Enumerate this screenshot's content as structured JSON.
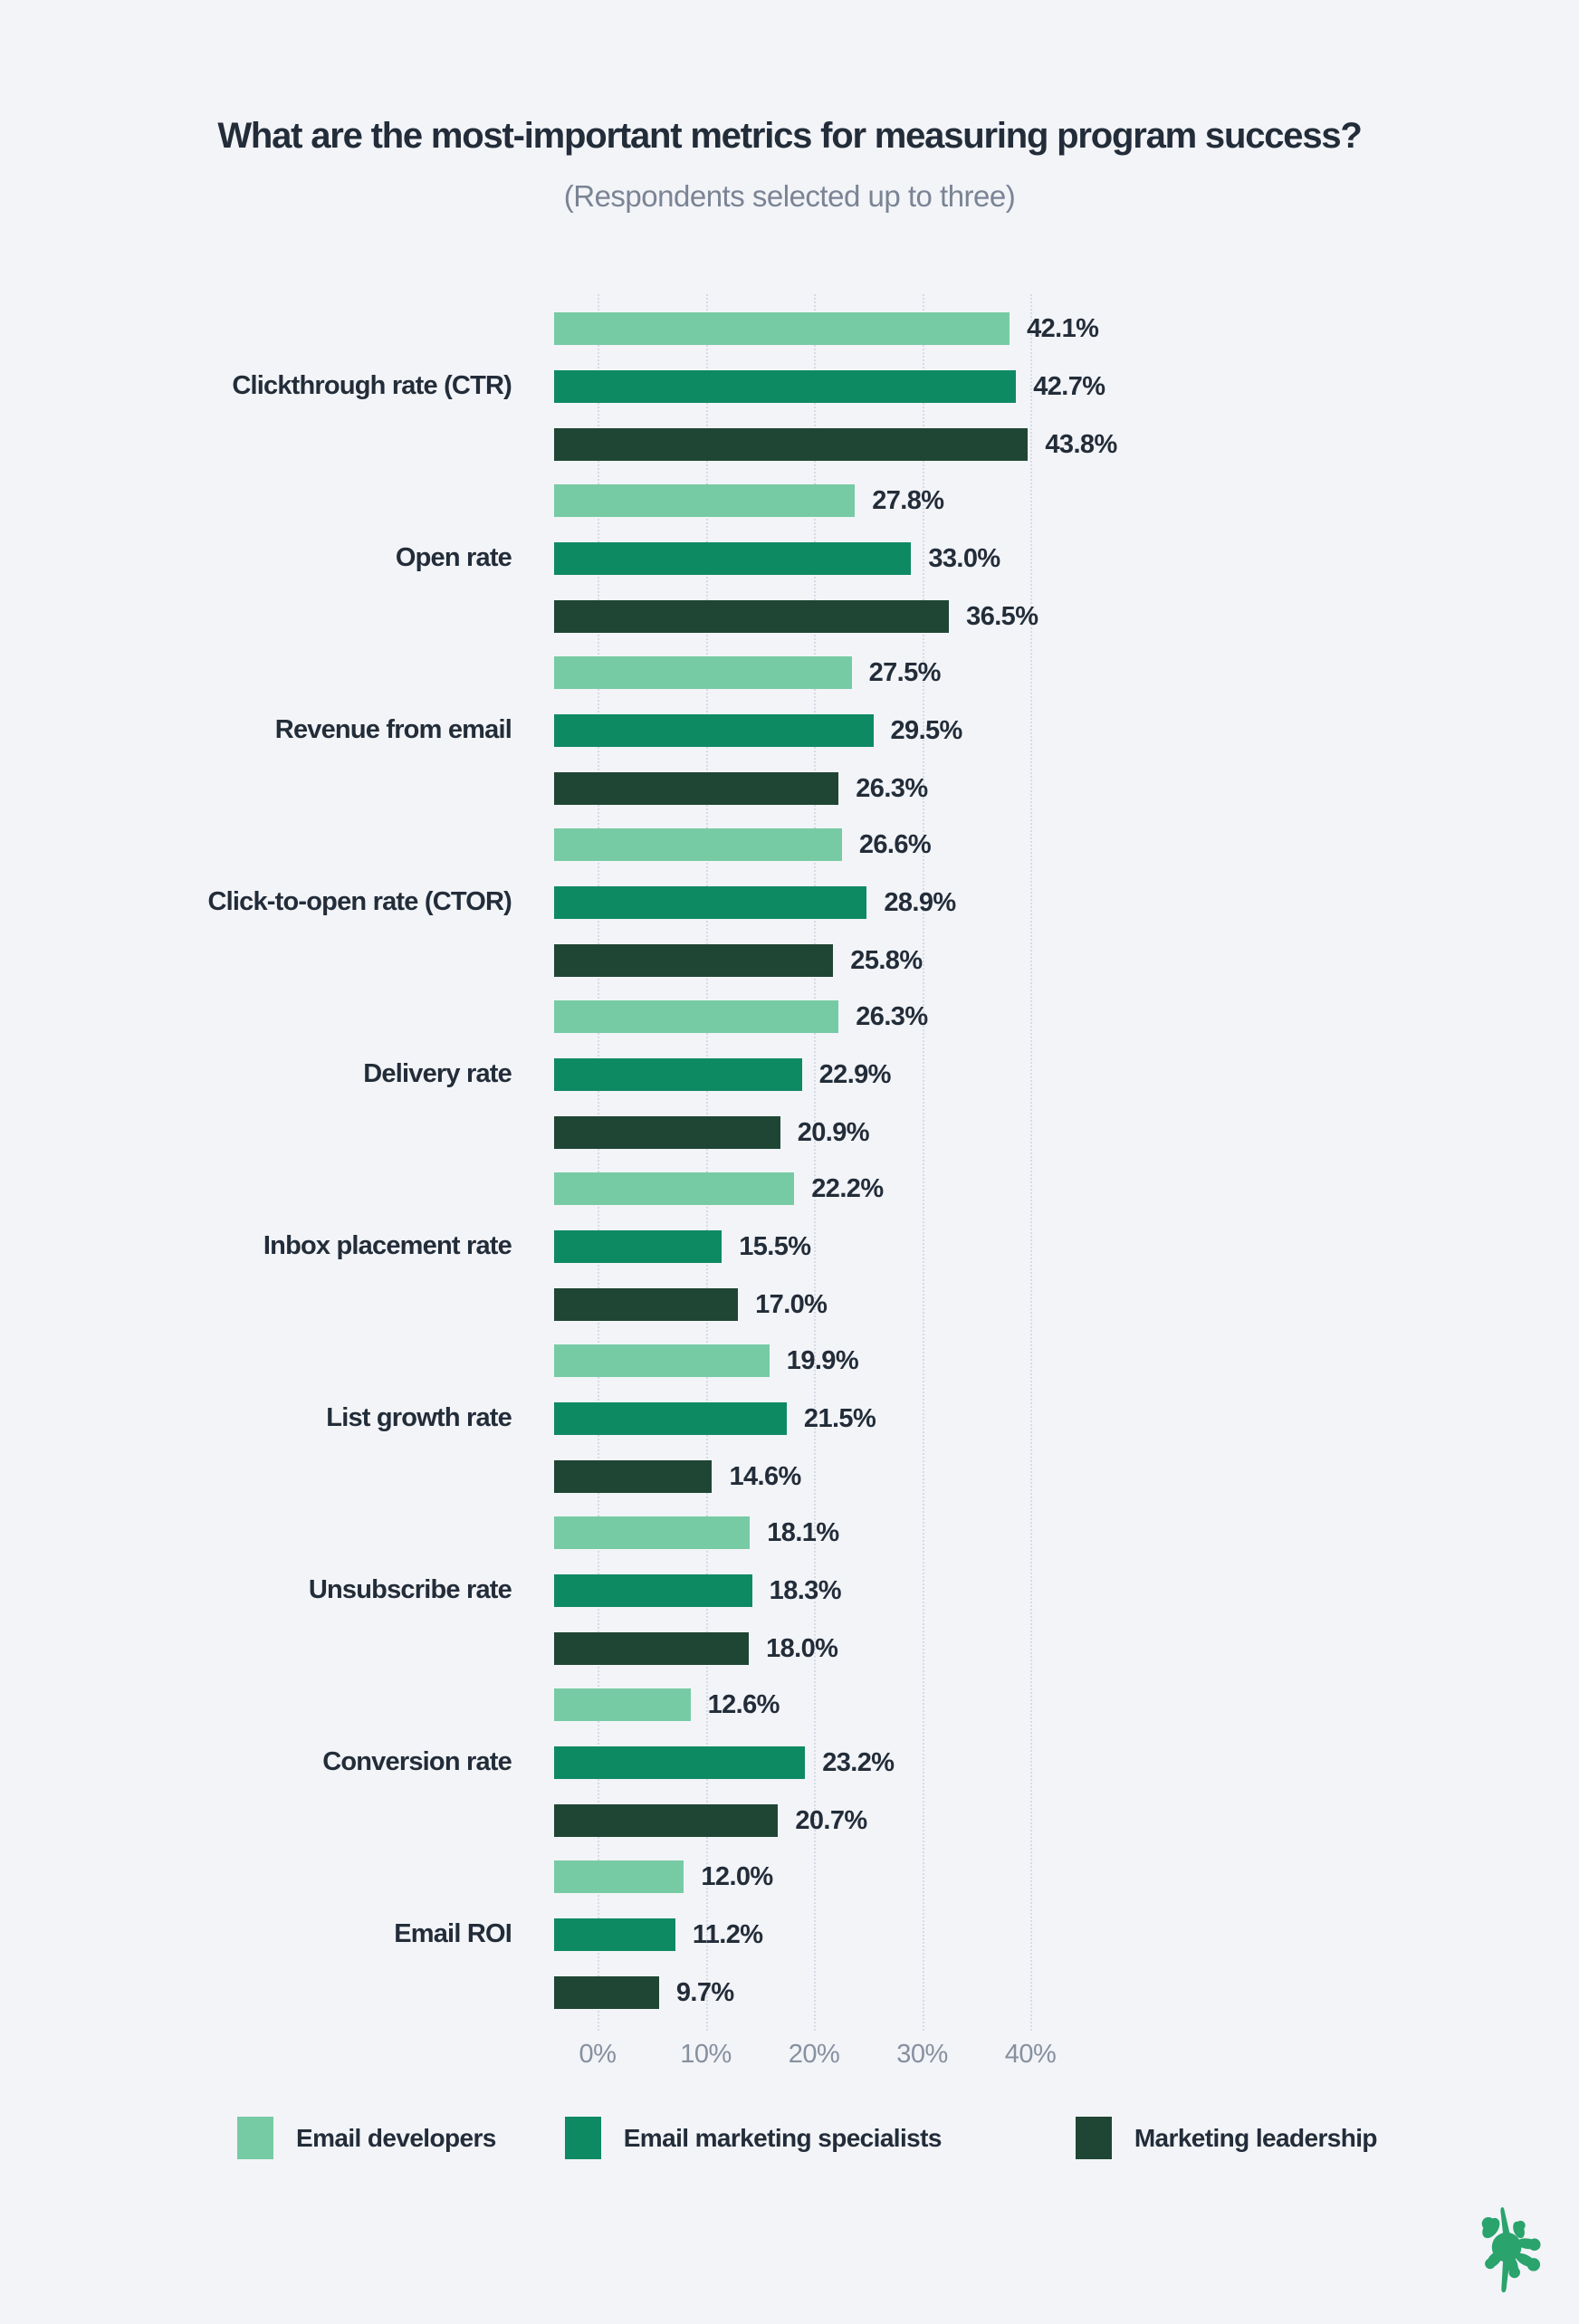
{
  "title": "What are the most-important metrics for measuring program success?",
  "subtitle": "(Respondents selected up to three)",
  "chart_data": {
    "type": "bar",
    "orientation": "horizontal",
    "title": "What are the most-important metrics for measuring program success?",
    "subtitle": "(Respondents selected up to three)",
    "categories": [
      "Clickthrough rate (CTR)",
      "Open rate",
      "Revenue from email",
      "Click-to-open rate (CTOR)",
      "Delivery rate",
      "Inbox placement rate",
      "List growth rate",
      "Unsubscribe rate",
      "Conversion rate",
      "Email ROI"
    ],
    "series": [
      {
        "name": "Email developers",
        "color": "#77cba4",
        "values": [
          42.1,
          27.8,
          27.5,
          26.6,
          26.3,
          22.2,
          19.9,
          18.1,
          12.6,
          12.0
        ]
      },
      {
        "name": "Email marketing specialists",
        "color": "#0e8a63",
        "values": [
          42.7,
          33.0,
          29.5,
          28.9,
          22.9,
          15.5,
          21.5,
          18.3,
          23.2,
          11.2
        ]
      },
      {
        "name": "Marketing leadership",
        "color": "#1f4634",
        "values": [
          43.8,
          36.5,
          26.3,
          25.8,
          20.9,
          17.0,
          14.6,
          18.0,
          20.7,
          9.7
        ]
      }
    ],
    "value_suffix": "%",
    "value_decimals": 1,
    "xlabel": "",
    "ylabel": "",
    "axis_ticks": [
      "0%",
      "10%",
      "20%",
      "30%",
      "40%"
    ],
    "axis_tick_values": [
      0,
      10,
      20,
      30,
      40
    ],
    "xlim": [
      0,
      43.8
    ],
    "grid": "dotted-vertical",
    "legend_position": "bottom"
  },
  "legend": {
    "items": [
      {
        "label": "Email developers",
        "color": "#77cba4"
      },
      {
        "label": "Email marketing specialists",
        "color": "#0e8a63"
      },
      {
        "label": "Marketing leadership",
        "color": "#1f4634"
      }
    ]
  },
  "logo": {
    "name": "ink-splat-logo",
    "color": "#2aa36c"
  },
  "colors": {
    "background": "#f2f4f8",
    "text_dark": "#232d39",
    "text_grey": "#7b8494",
    "gridline": "#d6dbe5"
  }
}
